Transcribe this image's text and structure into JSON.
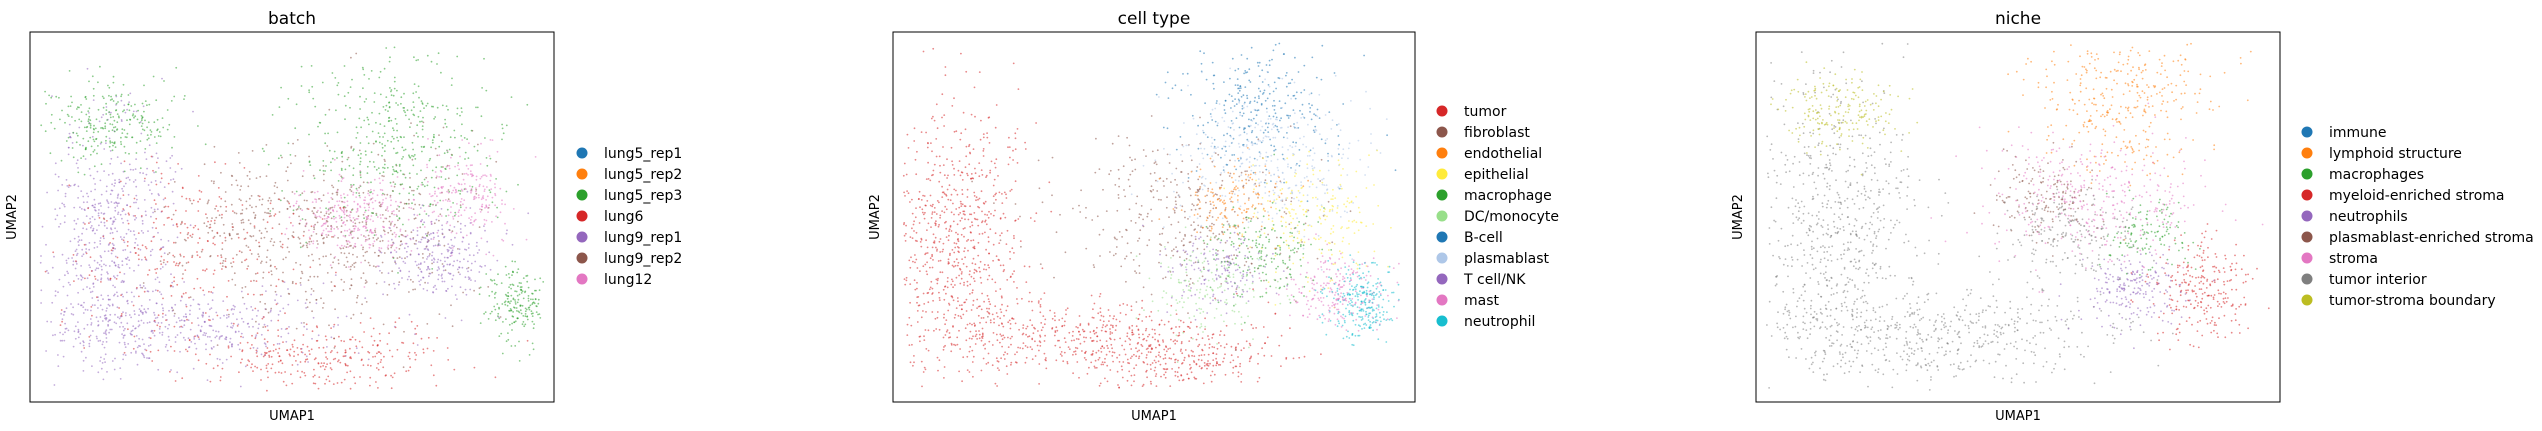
{
  "chart_data": [
    {
      "type": "scatter",
      "title": "batch",
      "xlabel": "UMAP1",
      "ylabel": "UMAP2",
      "grid": false,
      "legend_placement": "right",
      "series": [
        {
          "name": "lung5_rep1",
          "color": "#1f77b4"
        },
        {
          "name": "lung5_rep2",
          "color": "#ff7f0e"
        },
        {
          "name": "lung5_rep3",
          "color": "#2ca02c"
        },
        {
          "name": "lung6",
          "color": "#d62728"
        },
        {
          "name": "lung9_rep1",
          "color": "#9467bd"
        },
        {
          "name": "lung9_rep2",
          "color": "#8c564b"
        },
        {
          "name": "lung12",
          "color": "#e377c2"
        }
      ]
    },
    {
      "type": "scatter",
      "title": "cell type",
      "xlabel": "UMAP1",
      "ylabel": "UMAP2",
      "grid": false,
      "legend_placement": "right",
      "series": [
        {
          "name": "tumor",
          "color": "#d62728"
        },
        {
          "name": "fibroblast",
          "color": "#8c564b"
        },
        {
          "name": "endothelial",
          "color": "#ff7f0e"
        },
        {
          "name": "epithelial",
          "color": "#ffeb3b"
        },
        {
          "name": "macrophage",
          "color": "#2ca02c"
        },
        {
          "name": "DC/monocyte",
          "color": "#98df8a"
        },
        {
          "name": "B-cell",
          "color": "#1f77b4"
        },
        {
          "name": "plasmablast",
          "color": "#aec7e8"
        },
        {
          "name": "T cell/NK",
          "color": "#9467bd"
        },
        {
          "name": "mast",
          "color": "#e377c2"
        },
        {
          "name": "neutrophil",
          "color": "#17becf"
        }
      ]
    },
    {
      "type": "scatter",
      "title": "niche",
      "xlabel": "UMAP1",
      "ylabel": "UMAP2",
      "grid": false,
      "legend_placement": "right",
      "series": [
        {
          "name": "immune",
          "color": "#1f77b4"
        },
        {
          "name": "lymphoid structure",
          "color": "#ff7f0e"
        },
        {
          "name": "macrophages",
          "color": "#2ca02c"
        },
        {
          "name": "myeloid-enriched stroma",
          "color": "#d62728"
        },
        {
          "name": "neutrophils",
          "color": "#9467bd"
        },
        {
          "name": "plasmablast-enriched stroma",
          "color": "#8c564b"
        },
        {
          "name": "stroma",
          "color": "#e377c2"
        },
        {
          "name": "tumor interior",
          "color": "#7f7f7f"
        },
        {
          "name": "tumor-stroma boundary",
          "color": "#bcbd22"
        }
      ]
    }
  ]
}
